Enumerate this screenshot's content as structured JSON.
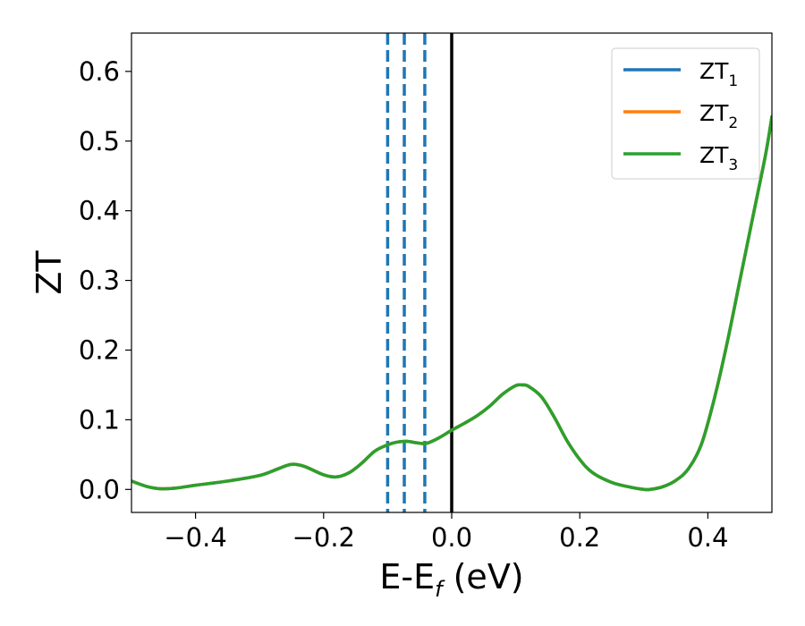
{
  "chart_data": {
    "type": "line",
    "xlabel": {
      "base": "E-E",
      "sub": "f",
      "unit": " (eV)"
    },
    "ylabel": "ZT",
    "xlim": [
      -0.5,
      0.5
    ],
    "ylim": [
      -0.033,
      0.655
    ],
    "xticks": [
      -0.4,
      -0.2,
      0.0,
      0.2,
      0.4
    ],
    "xtick_labels": [
      "−0.4",
      "−0.2",
      "0.0",
      "0.2",
      "0.4"
    ],
    "yticks": [
      0.0,
      0.1,
      0.2,
      0.3,
      0.4,
      0.5,
      0.6
    ],
    "ytick_labels": [
      "0.0",
      "0.1",
      "0.2",
      "0.3",
      "0.4",
      "0.5",
      "0.6"
    ],
    "grid": false,
    "legend_position": "top-right",
    "vlines_dashed": [
      -0.1,
      -0.074,
      -0.042
    ],
    "vline_solid": 0.0,
    "colors": {
      "ZT1": "#1f77b4",
      "ZT2": "#ff7f0e",
      "ZT3": "#2ca02c",
      "fermi": "#000000"
    },
    "series": [
      {
        "name": "ZT",
        "sub": "1",
        "color": "#1f77b4",
        "x": [
          -0.5,
          -0.475,
          -0.455,
          -0.43,
          -0.4,
          -0.35,
          -0.3,
          -0.27,
          -0.25,
          -0.23,
          -0.2,
          -0.18,
          -0.16,
          -0.14,
          -0.12,
          -0.1,
          -0.085,
          -0.07,
          -0.055,
          -0.04,
          -0.02,
          0.0,
          0.02,
          0.04,
          0.06,
          0.08,
          0.1,
          0.11,
          0.12,
          0.14,
          0.16,
          0.18,
          0.2,
          0.22,
          0.25,
          0.28,
          0.3,
          0.31,
          0.33,
          0.35,
          0.37,
          0.39,
          0.41,
          0.43,
          0.45,
          0.47,
          0.49,
          0.5
        ],
        "y": [
          0.012,
          0.004,
          0.001,
          0.002,
          0.006,
          0.012,
          0.02,
          0.03,
          0.036,
          0.033,
          0.021,
          0.018,
          0.024,
          0.038,
          0.055,
          0.064,
          0.068,
          0.069,
          0.067,
          0.066,
          0.074,
          0.085,
          0.095,
          0.106,
          0.12,
          0.137,
          0.149,
          0.15,
          0.148,
          0.133,
          0.104,
          0.07,
          0.043,
          0.024,
          0.01,
          0.003,
          0.0,
          0.0,
          0.004,
          0.013,
          0.03,
          0.065,
          0.13,
          0.21,
          0.3,
          0.39,
          0.48,
          0.535
        ]
      },
      {
        "name": "ZT",
        "sub": "2",
        "color": "#ff7f0e",
        "x": [
          -0.5,
          -0.475,
          -0.455,
          -0.43,
          -0.4,
          -0.35,
          -0.3,
          -0.27,
          -0.25,
          -0.23,
          -0.2,
          -0.18,
          -0.16,
          -0.14,
          -0.12,
          -0.1,
          -0.085,
          -0.07,
          -0.055,
          -0.04,
          -0.02,
          0.0,
          0.02,
          0.04,
          0.06,
          0.08,
          0.1,
          0.11,
          0.12,
          0.14,
          0.16,
          0.18,
          0.2,
          0.22,
          0.25,
          0.28,
          0.3,
          0.31,
          0.33,
          0.35,
          0.37,
          0.39,
          0.41,
          0.43,
          0.45,
          0.47,
          0.49,
          0.5
        ],
        "y": [
          0.012,
          0.004,
          0.001,
          0.002,
          0.006,
          0.012,
          0.02,
          0.03,
          0.036,
          0.033,
          0.021,
          0.018,
          0.024,
          0.038,
          0.055,
          0.064,
          0.068,
          0.069,
          0.067,
          0.066,
          0.074,
          0.085,
          0.095,
          0.106,
          0.12,
          0.137,
          0.149,
          0.15,
          0.148,
          0.133,
          0.104,
          0.07,
          0.043,
          0.024,
          0.01,
          0.003,
          0.0,
          0.0,
          0.004,
          0.013,
          0.03,
          0.065,
          0.13,
          0.21,
          0.3,
          0.39,
          0.48,
          0.535
        ]
      },
      {
        "name": "ZT",
        "sub": "3",
        "color": "#2ca02c",
        "x": [
          -0.5,
          -0.475,
          -0.455,
          -0.43,
          -0.4,
          -0.35,
          -0.3,
          -0.27,
          -0.25,
          -0.23,
          -0.2,
          -0.18,
          -0.16,
          -0.14,
          -0.12,
          -0.1,
          -0.085,
          -0.07,
          -0.055,
          -0.04,
          -0.02,
          0.0,
          0.02,
          0.04,
          0.06,
          0.08,
          0.1,
          0.11,
          0.12,
          0.14,
          0.16,
          0.18,
          0.2,
          0.22,
          0.25,
          0.28,
          0.3,
          0.31,
          0.33,
          0.35,
          0.37,
          0.39,
          0.41,
          0.43,
          0.45,
          0.47,
          0.49,
          0.5
        ],
        "y": [
          0.012,
          0.004,
          0.001,
          0.002,
          0.006,
          0.012,
          0.02,
          0.03,
          0.036,
          0.033,
          0.021,
          0.018,
          0.024,
          0.038,
          0.055,
          0.064,
          0.068,
          0.069,
          0.067,
          0.066,
          0.074,
          0.085,
          0.095,
          0.106,
          0.12,
          0.137,
          0.149,
          0.15,
          0.148,
          0.133,
          0.104,
          0.07,
          0.043,
          0.024,
          0.01,
          0.003,
          0.0,
          0.0,
          0.004,
          0.013,
          0.03,
          0.065,
          0.13,
          0.21,
          0.3,
          0.39,
          0.48,
          0.535
        ]
      }
    ]
  }
}
